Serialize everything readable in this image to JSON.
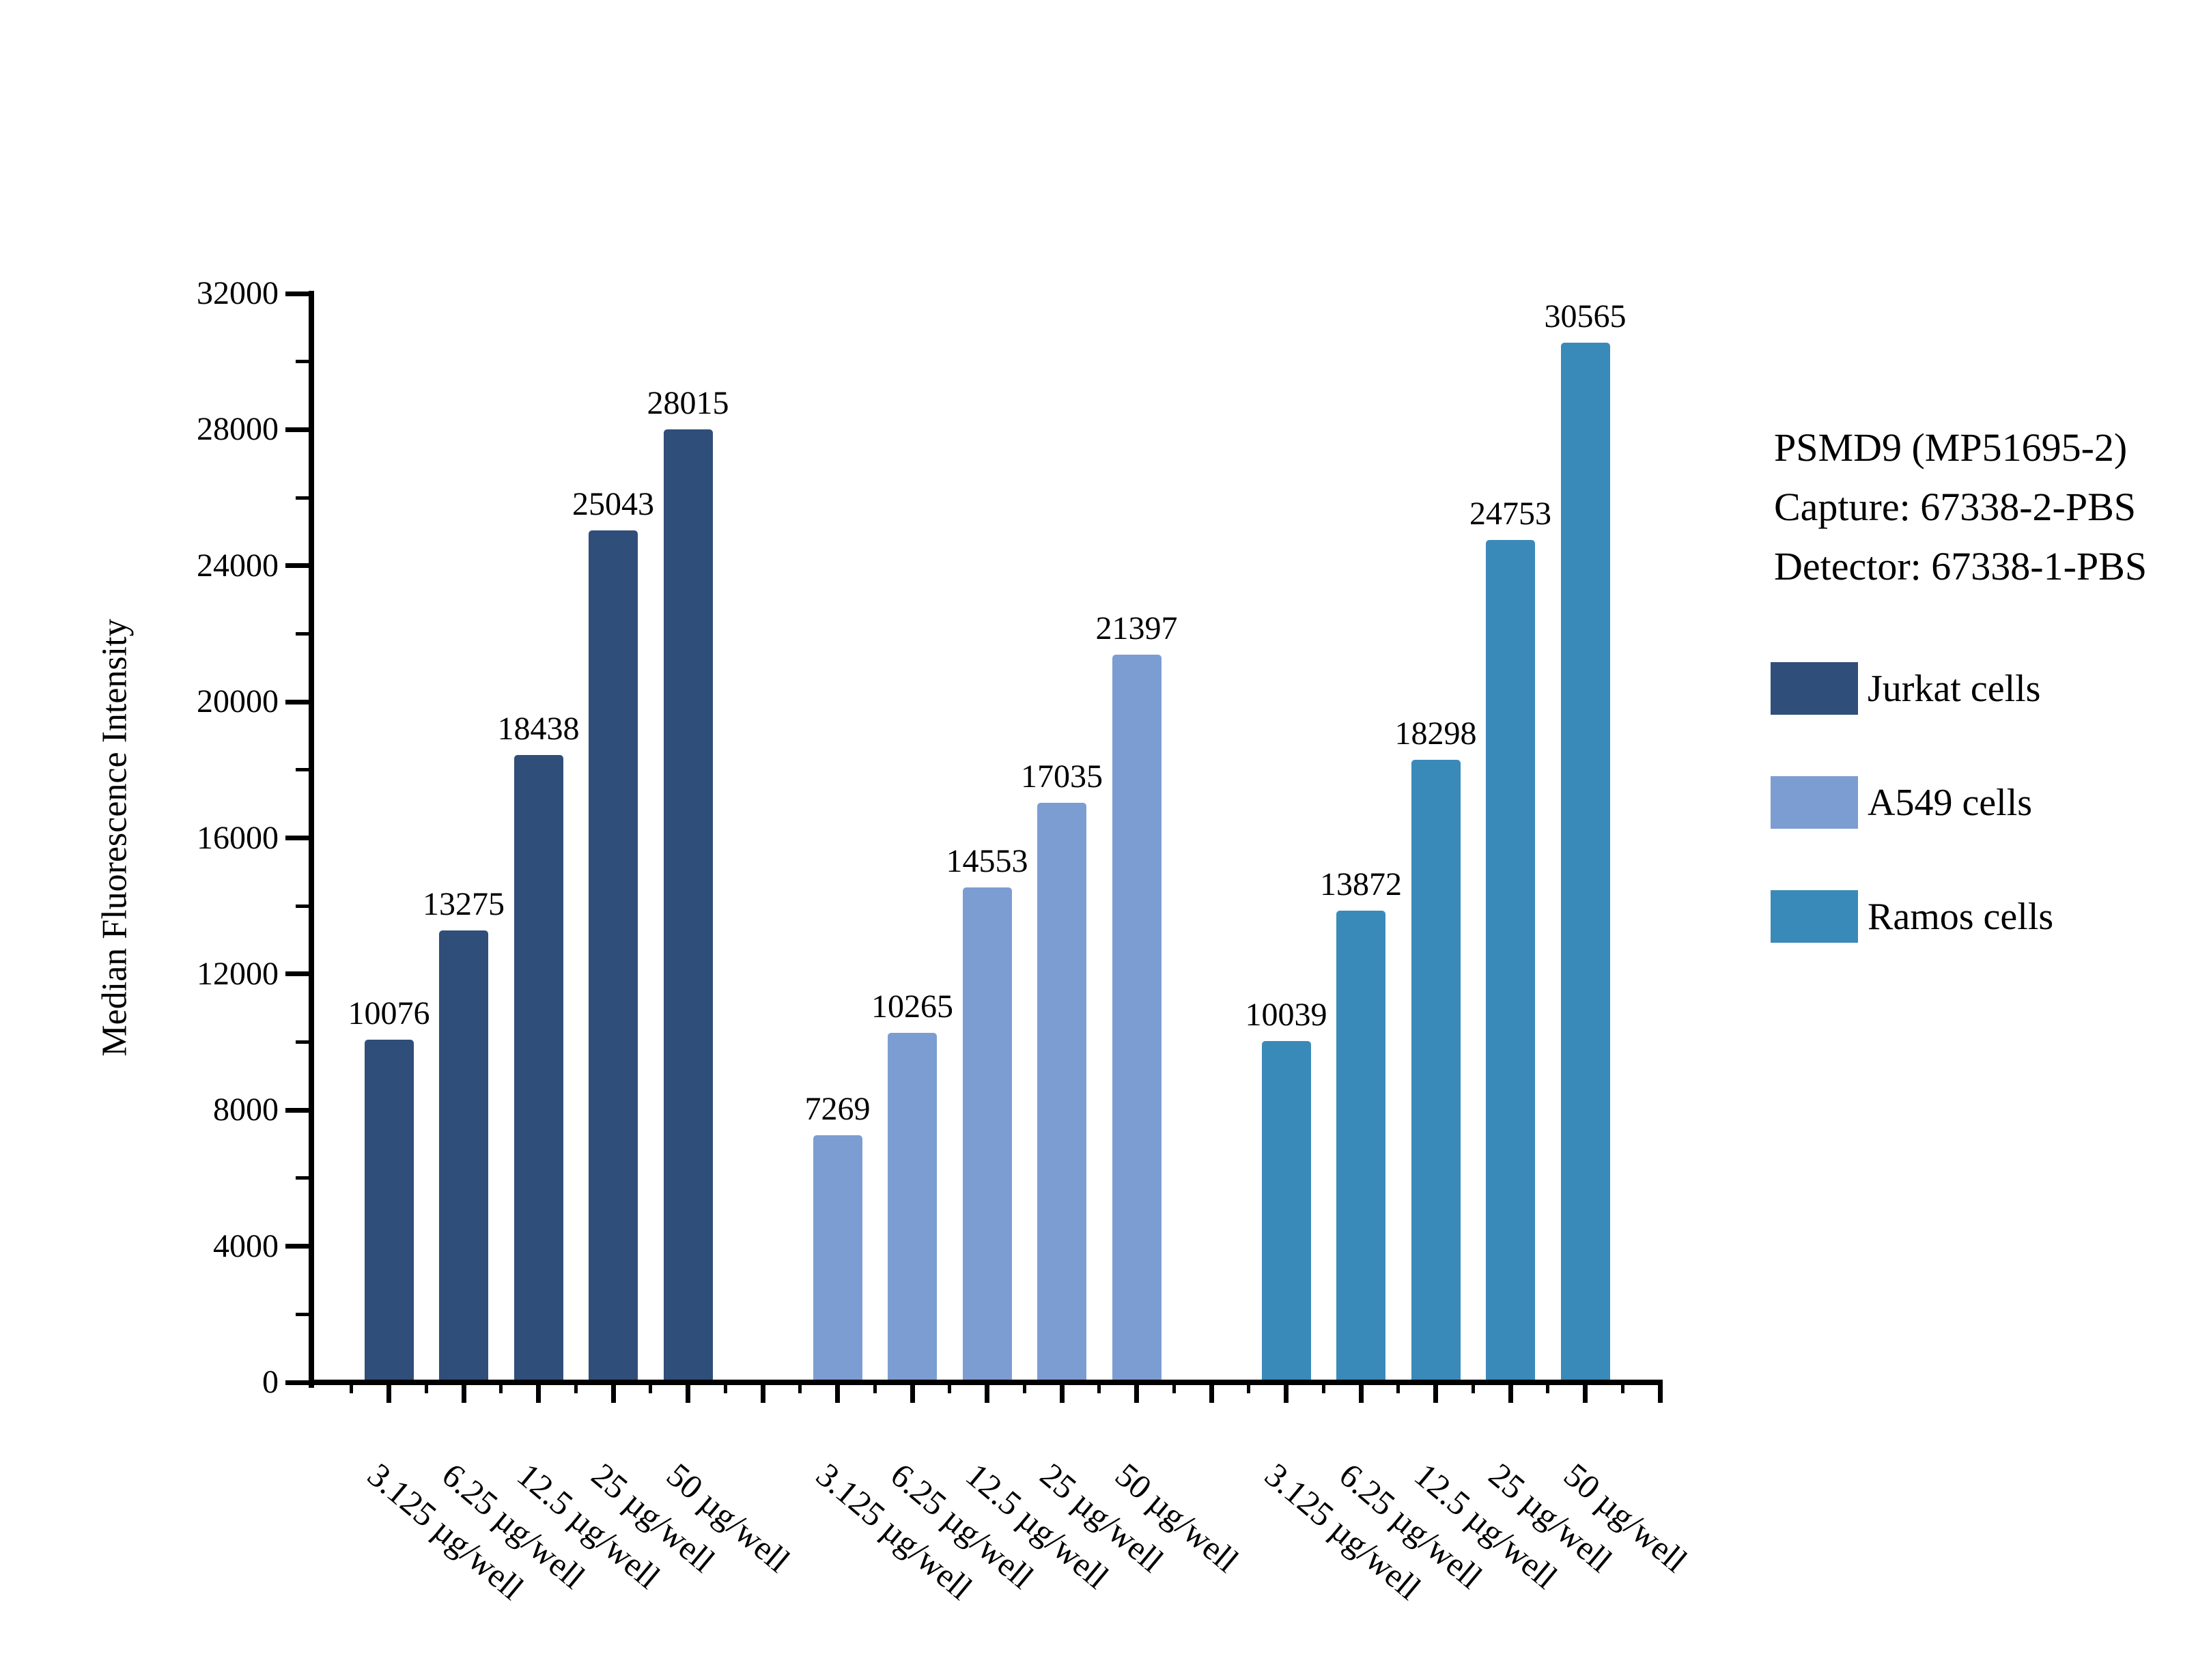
{
  "chart_data": {
    "type": "bar",
    "title": "PSMD9 (MP51695-2)",
    "annotation_lines": [
      "PSMD9 (MP51695-2)",
      "Capture: 67338-2-PBS",
      "Detector: 67338-1-PBS"
    ],
    "ylabel": "Median Fluorescence Intensity",
    "ylim": [
      0,
      32000
    ],
    "ytick_major_step": 4000,
    "ytick_minor_step": 2000,
    "grid": false,
    "legend_position": "right-of-plot",
    "categories": [
      "3.125 µg/well",
      "6.25 µg/well",
      "12.5 µg/well",
      "25 µg/well",
      "50 µg/well"
    ],
    "series": [
      {
        "name": "Jurkat cells",
        "color": "#2F4E79",
        "values": [
          10076,
          13275,
          18438,
          25043,
          28015
        ]
      },
      {
        "name": "A549 cells",
        "color": "#7C9DD1",
        "values": [
          7269,
          10265,
          14553,
          17035,
          21397
        ]
      },
      {
        "name": "Ramos cells",
        "color": "#3A8AB9",
        "values": [
          10039,
          13872,
          18298,
          24753,
          30565
        ]
      }
    ]
  }
}
